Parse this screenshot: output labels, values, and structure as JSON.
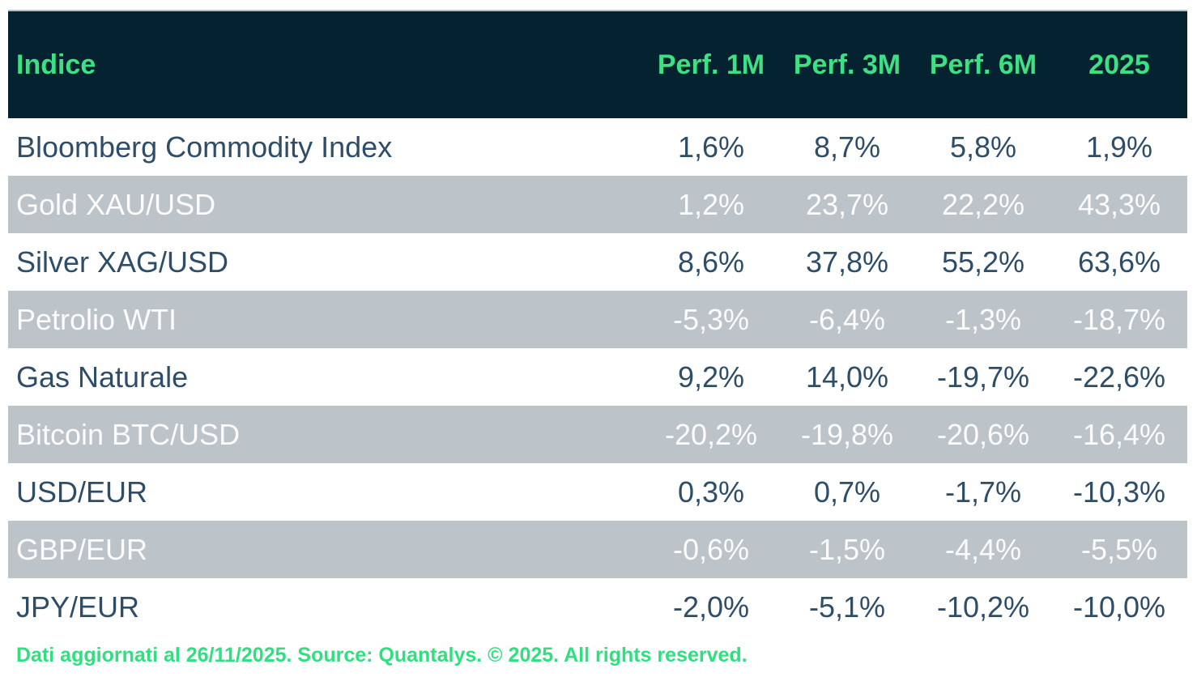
{
  "colors": {
    "header_bg": "#052230",
    "header_text": "#3de083",
    "row_alt_bg": "#bcc3c9",
    "row_text_dark": "#2e4d68",
    "row_text_light": "#fcfcfc",
    "footer_text": "#2fe07f",
    "header_top_border": "#b5bfc6"
  },
  "chart_data": {
    "type": "table",
    "title": "Indice performance table",
    "columns": [
      "Indice",
      "Perf. 1M",
      "Perf. 3M",
      "Perf. 6M",
      "2025"
    ],
    "rows": [
      {
        "name": "Bloomberg Commodity Index",
        "values": [
          "1,6%",
          "8,7%",
          "5,8%",
          "1,9%"
        ]
      },
      {
        "name": "Gold XAU/USD",
        "values": [
          "1,2%",
          "23,7%",
          "22,2%",
          "43,3%"
        ]
      },
      {
        "name": "Silver XAG/USD",
        "values": [
          "8,6%",
          "37,8%",
          "55,2%",
          "63,6%"
        ]
      },
      {
        "name": "Petrolio WTI",
        "values": [
          "-5,3%",
          "-6,4%",
          "-1,3%",
          "-18,7%"
        ]
      },
      {
        "name": "Gas Naturale",
        "values": [
          "9,2%",
          "14,0%",
          "-19,7%",
          "-22,6%"
        ]
      },
      {
        "name": "Bitcoin BTC/USD",
        "values": [
          "-20,2%",
          "-19,8%",
          "-20,6%",
          "-16,4%"
        ]
      },
      {
        "name": "USD/EUR",
        "values": [
          "0,3%",
          "0,7%",
          "-1,7%",
          "-10,3%"
        ]
      },
      {
        "name": "GBP/EUR",
        "values": [
          "-0,6%",
          "-1,5%",
          "-4,4%",
          "-5,5%"
        ]
      },
      {
        "name": "JPY/EUR",
        "values": [
          "-2,0%",
          "-5,1%",
          "-10,2%",
          "-10,0%"
        ]
      }
    ],
    "layout": {
      "striped": "even rows gray with white text, odd rows white with dark slate text",
      "value_alignment": "center",
      "name_alignment": "left"
    }
  },
  "footer": {
    "text": "Dati aggiornati al 26/11/2025. Source: Quantalys. © 2025. All rights reserved."
  }
}
